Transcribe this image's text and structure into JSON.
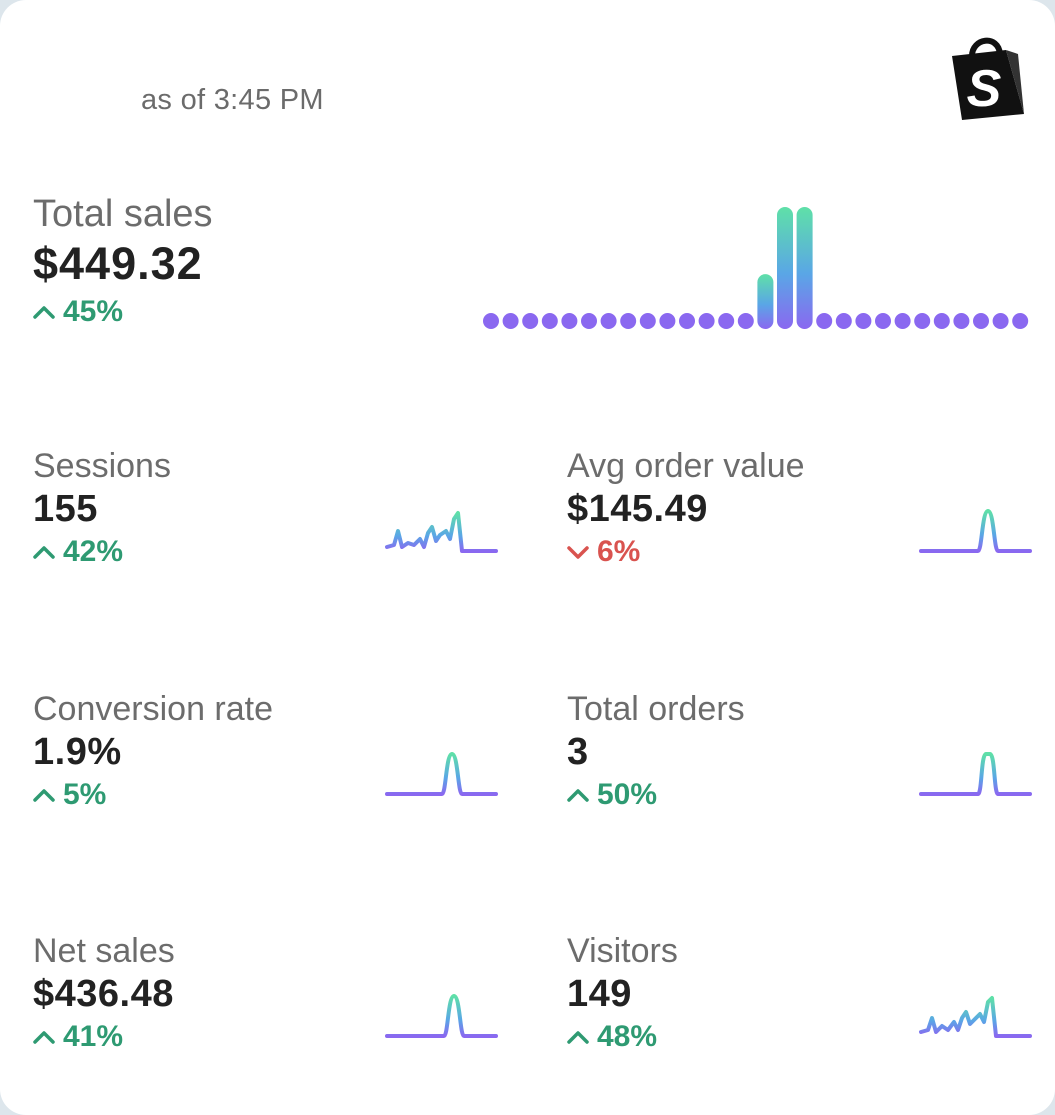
{
  "header": {
    "as_of": "as of 3:45 PM",
    "logo_icon": "shopify-bag-icon"
  },
  "colors": {
    "positive": "#2e9a72",
    "negative": "#d9534f",
    "spark_gradient_top": "#5fe0a8",
    "spark_gradient_bottom": "#8a68f0"
  },
  "total_sales": {
    "label": "Total sales",
    "value": "$449.32",
    "change": "45%",
    "direction": "up",
    "chart_data": {
      "type": "bar",
      "values": [
        0,
        0,
        0,
        0,
        0,
        0,
        0,
        0,
        0,
        0,
        0,
        0,
        0,
        0,
        0.45,
        1,
        1,
        0,
        0,
        0,
        0,
        0,
        0,
        0,
        0,
        0,
        0,
        0
      ]
    }
  },
  "metrics": [
    {
      "label": "Sessions",
      "value": "155",
      "change": "42%",
      "direction": "up",
      "spark": "multi"
    },
    {
      "label": "Avg order value",
      "value": "$145.49",
      "change": "6%",
      "direction": "down",
      "spark": "single"
    },
    {
      "label": "Conversion rate",
      "value": "1.9%",
      "change": "5%",
      "direction": "up",
      "spark": "single"
    },
    {
      "label": "Total orders",
      "value": "3",
      "change": "50%",
      "direction": "up",
      "spark": "single"
    },
    {
      "label": "Net sales",
      "value": "$436.48",
      "change": "41%",
      "direction": "up",
      "spark": "single"
    },
    {
      "label": "Visitors",
      "value": "149",
      "change": "48%",
      "direction": "up",
      "spark": "multi"
    }
  ]
}
